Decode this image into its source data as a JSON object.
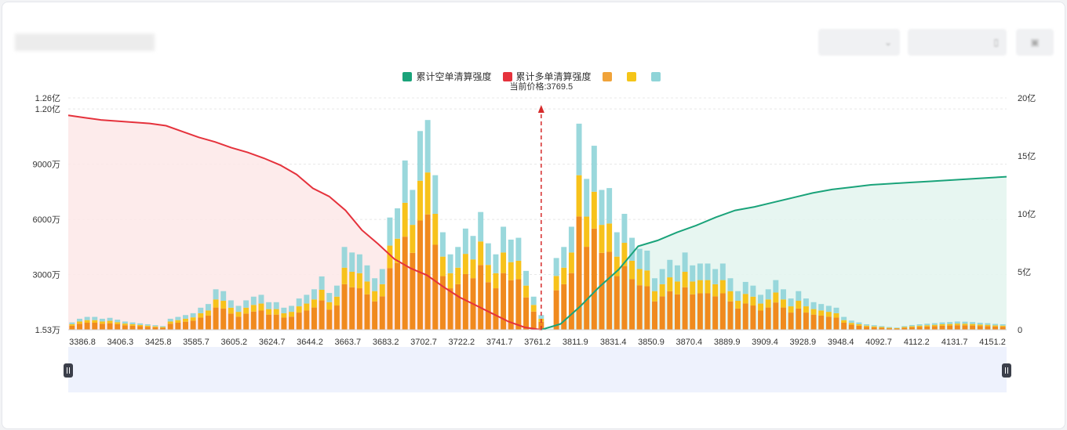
{
  "header": {
    "title": "",
    "controls": [
      {
        "label": "",
        "icon": "chevron-down-icon"
      },
      {
        "label": "",
        "icon": "calendar-icon"
      },
      {
        "label": "",
        "icon": "image-icon"
      }
    ]
  },
  "legend": [
    {
      "label": "累计空单清算强度",
      "color": "#1aa37a"
    },
    {
      "label": "累计多单清算强度",
      "color": "#e5323c"
    },
    {
      "label": "",
      "color": "#f0a33a"
    },
    {
      "label": "",
      "color": "#f5c518"
    },
    {
      "label": "",
      "color": "#8fd4d8"
    }
  ],
  "colors": {
    "bar_base": "#f08a1e",
    "bar_mid": "#f7c21b",
    "bar_top": "#8fd4d8",
    "short_line": "#1aa37a",
    "long_line": "#e5323c"
  },
  "chart_data": {
    "type": "bar",
    "current_price_label": "当前价格:3769.5",
    "current_price": 3769.5,
    "x_tick_labels": [
      "3386.8",
      "3406.3",
      "3425.8",
      "3585.7",
      "3605.2",
      "3624.7",
      "3644.2",
      "3663.7",
      "3683.2",
      "3702.7",
      "3722.2",
      "3741.7",
      "3761.2",
      "3811.9",
      "3831.4",
      "3850.9",
      "3870.4",
      "3889.9",
      "3909.4",
      "3928.9",
      "3948.4",
      "4092.7",
      "4112.2",
      "4131.7",
      "4151.2"
    ],
    "y_left_ticks": [
      "1.53万",
      "3000万",
      "6000万",
      "9000万",
      "1.20亿",
      "1.26亿"
    ],
    "y_left_range_wan": [
      1.53,
      12600
    ],
    "y_right_ticks": [
      "0",
      "5亿",
      "10亿",
      "15亿",
      "20亿"
    ],
    "y_right_range_yi": [
      0,
      20
    ],
    "bars_total_wan": [
      400,
      600,
      700,
      700,
      600,
      650,
      550,
      450,
      400,
      350,
      300,
      250,
      200,
      600,
      700,
      800,
      900,
      1200,
      1400,
      2200,
      2100,
      1600,
      1300,
      1600,
      1800,
      1900,
      1500,
      1500,
      1200,
      1300,
      1700,
      1900,
      2200,
      2900,
      2000,
      2400,
      4500,
      4200,
      4100,
      3500,
      2800,
      3300,
      6100,
      6600,
      9200,
      7600,
      10800,
      11400,
      8400,
      5300,
      4100,
      4500,
      5500,
      5100,
      6400,
      4700,
      4100,
      5600,
      4900,
      5000,
      3200,
      1800,
      800,
      0,
      3900,
      4500,
      5600,
      11200,
      8200,
      10000,
      7600,
      7700,
      5300,
      6300,
      5000,
      4400,
      4300,
      2800,
      3300,
      3800,
      3500,
      4200,
      3500,
      3600,
      3600,
      3300,
      3600,
      2800,
      2100,
      2600,
      2400,
      1900,
      2200,
      2700,
      2200,
      1700,
      2100,
      1700,
      1500,
      1400,
      1300,
      1200,
      700,
      500,
      400,
      300,
      250,
      200,
      150,
      120,
      200,
      260,
      300,
      330,
      360,
      400,
      420,
      450,
      440,
      420,
      380,
      360,
      320,
      300
    ],
    "bars_base_share": 0.55,
    "bars_mid_share": 0.2,
    "long_cumulative_yi": [
      18.5,
      18.3,
      18.1,
      18.0,
      17.9,
      17.8,
      17.6,
      17.1,
      16.6,
      16.2,
      15.7,
      15.3,
      14.8,
      14.2,
      13.4,
      12.2,
      11.5,
      10.3,
      8.6,
      7.4,
      6.1,
      5.3,
      4.7,
      3.7,
      2.8,
      2.1,
      1.4,
      0.7,
      0.2,
      0
    ],
    "short_cumulative_yi": [
      0,
      0.5,
      2.0,
      3.7,
      5.2,
      7.2,
      7.7,
      8.4,
      9.0,
      9.7,
      10.3,
      10.6,
      11.0,
      11.4,
      11.8,
      12.1,
      12.3,
      12.5,
      12.6,
      12.7,
      12.8,
      12.9,
      13.0,
      13.1,
      13.2
    ]
  }
}
